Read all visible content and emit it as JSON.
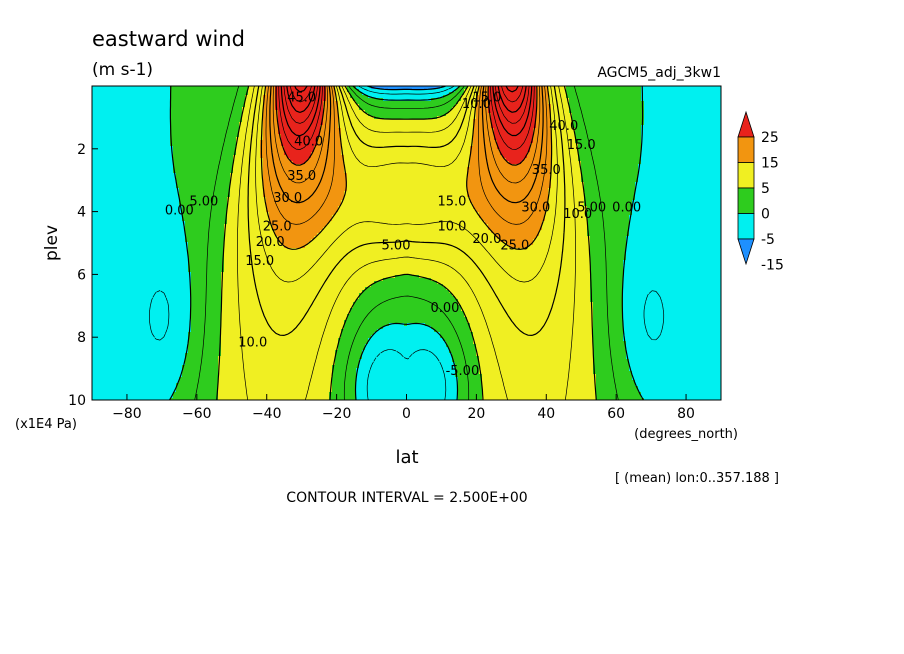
{
  "header": {
    "title": "eastward wind",
    "units": "(m s-1)",
    "run_id": "AGCM5_adj_3kw1"
  },
  "footer": {
    "mean_note": "[ (mean) lon:0..357.188 ]",
    "contour_interval": "CONTOUR INTERVAL = 2.500E+00"
  },
  "chart_data": {
    "type": "heatmap",
    "title": "eastward wind",
    "xlabel": "lat",
    "xunit": "(degrees_north)",
    "ylabel": "plev",
    "yunit": "(x1E4 Pa)",
    "xlim": [
      -90,
      90
    ],
    "ylim": [
      10,
      0
    ],
    "x_ticks": [
      -80,
      -60,
      -40,
      -20,
      0,
      20,
      40,
      60,
      80
    ],
    "y_ticks": [
      2,
      4,
      6,
      8,
      10
    ],
    "contour_interval": 2.5,
    "colorbar": {
      "labels": [
        "25",
        "15",
        "5",
        "0",
        "-5",
        "-15"
      ],
      "colors": [
        "#e8231c",
        "#f29510",
        "#f0ef22",
        "#2ecc1e",
        "#00f0f0",
        "#1e90ff"
      ]
    },
    "color_levels": [
      {
        "min": 25,
        "color": "#e8231c"
      },
      {
        "min": 15,
        "max": 25,
        "color": "#f29510"
      },
      {
        "min": 5,
        "max": 15,
        "color": "#f0ef22"
      },
      {
        "min": 0,
        "max": 5,
        "color": "#2ecc1e"
      },
      {
        "min": -5,
        "max": 0,
        "color": "#00f0f0"
      },
      {
        "max": -5,
        "color": "#1e90ff"
      }
    ],
    "contour_labels": [
      {
        "text": "0.00",
        "lat": -65,
        "plev": 4.1
      },
      {
        "text": "5.00",
        "lat": -58,
        "plev": 3.8
      },
      {
        "text": "10.0",
        "lat": -44,
        "plev": 8.3
      },
      {
        "text": "15.0",
        "lat": -42,
        "plev": 5.7
      },
      {
        "text": "20.0",
        "lat": -39,
        "plev": 5.1
      },
      {
        "text": "25.0",
        "lat": -37,
        "plev": 4.6
      },
      {
        "text": "30.0",
        "lat": -34,
        "plev": 3.7
      },
      {
        "text": "35.0",
        "lat": -30,
        "plev": 3.0
      },
      {
        "text": "40.0",
        "lat": -28,
        "plev": 1.9
      },
      {
        "text": "45.0",
        "lat": -30,
        "plev": 0.5
      },
      {
        "text": "5.00",
        "lat": -3,
        "plev": 5.2
      },
      {
        "text": "0.00",
        "lat": 11,
        "plev": 7.2
      },
      {
        "text": "-5.00",
        "lat": 16,
        "plev": 9.2
      },
      {
        "text": "10.0",
        "lat": 13,
        "plev": 4.6
      },
      {
        "text": "15.0",
        "lat": 13,
        "plev": 3.8
      },
      {
        "text": "20.0",
        "lat": 23,
        "plev": 5.0
      },
      {
        "text": "25.0",
        "lat": 31,
        "plev": 5.2
      },
      {
        "text": "30.0",
        "lat": 37,
        "plev": 4.0
      },
      {
        "text": "35.0",
        "lat": 40,
        "plev": 2.8
      },
      {
        "text": "40.0",
        "lat": 45,
        "plev": 1.4
      },
      {
        "text": "15.0",
        "lat": 50,
        "plev": 2.0
      },
      {
        "text": "10.0",
        "lat": 49,
        "plev": 4.2
      },
      {
        "text": "5.00",
        "lat": 53,
        "plev": 4.0
      },
      {
        "text": "0.00",
        "lat": 63,
        "plev": 4.0
      },
      {
        "text": "10.0",
        "lat": 20,
        "plev": 0.7
      },
      {
        "text": "15.0",
        "lat": 23,
        "plev": 0.5
      }
    ]
  }
}
